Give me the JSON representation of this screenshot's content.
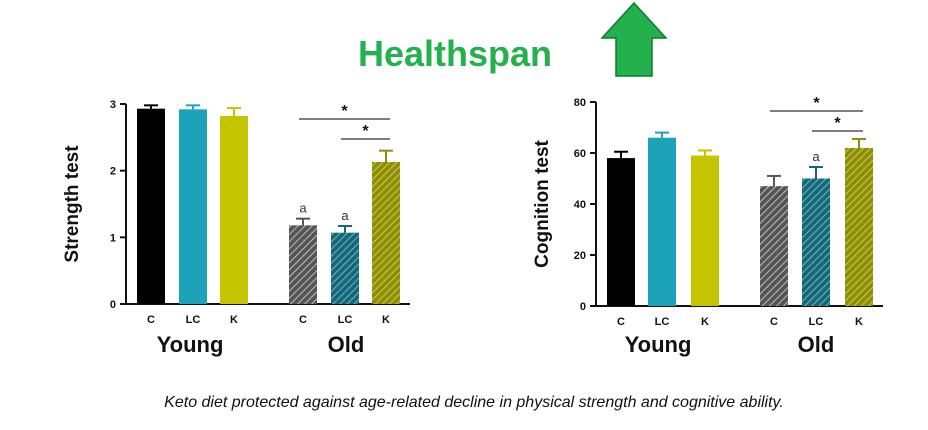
{
  "header": {
    "title": "Healthspan",
    "arrow": "up-arrow-icon",
    "color": "#22b14c"
  },
  "caption": "Keto diet protected against age-related decline in physical strength and cognitive ability.",
  "colors": {
    "C": "#000000",
    "LC": "#1ca3b9",
    "K": "#c4c400",
    "old_C": "#555555",
    "old_LC": "#15677a",
    "old_K": "#8e8e08"
  },
  "chart_data": [
    {
      "type": "bar",
      "ylabel": "Strength test",
      "ylim": [
        0,
        3
      ],
      "yticks": [
        0,
        1,
        2,
        3
      ],
      "groups": [
        "Young",
        "Old"
      ],
      "categories": [
        "C",
        "LC",
        "K",
        "C",
        "LC",
        "K"
      ],
      "values": [
        2.93,
        2.92,
        2.82,
        1.18,
        1.07,
        2.13
      ],
      "errors": [
        0.05,
        0.06,
        0.12,
        0.1,
        0.1,
        0.17
      ],
      "hatched": [
        false,
        false,
        false,
        true,
        true,
        true
      ],
      "bar_labels": [
        "",
        "",
        "",
        "a",
        "a",
        ""
      ],
      "significance": [
        {
          "from": 3,
          "to": 5,
          "label": "*"
        },
        {
          "from": 4,
          "to": 5,
          "label": "*"
        }
      ]
    },
    {
      "type": "bar",
      "ylabel": "Cognition test",
      "ylim": [
        0,
        80
      ],
      "yticks": [
        0,
        20,
        40,
        60,
        80
      ],
      "groups": [
        "Young",
        "Old"
      ],
      "categories": [
        "C",
        "LC",
        "K",
        "C",
        "LC",
        "K"
      ],
      "values": [
        58,
        66,
        59,
        47,
        50,
        62
      ],
      "errors": [
        2.5,
        2,
        2,
        4,
        4.5,
        3.5
      ],
      "hatched": [
        false,
        false,
        false,
        true,
        true,
        true
      ],
      "bar_labels": [
        "",
        "",
        "",
        "",
        "a",
        ""
      ],
      "significance": [
        {
          "from": 3,
          "to": 5,
          "label": "*"
        },
        {
          "from": 4,
          "to": 5,
          "label": "*"
        }
      ]
    }
  ]
}
